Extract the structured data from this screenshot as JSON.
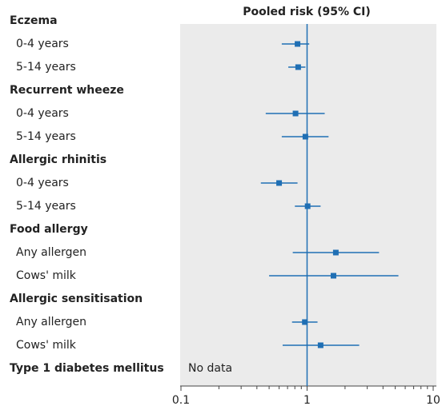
{
  "chart_data": {
    "type": "forest",
    "title": "Pooled risk (95% CI)",
    "color": "#1f6fb4",
    "log": true,
    "xlim": [
      0.1,
      10
    ],
    "xticks": [
      0.1,
      1,
      10
    ],
    "xminorticks": [
      0.2,
      0.3,
      0.4,
      0.5,
      0.6,
      0.7,
      0.8,
      0.9,
      2,
      3,
      4,
      5,
      6,
      7,
      8,
      9
    ],
    "reference": 1,
    "groups": [
      {
        "name": "Eczema",
        "rows": [
          {
            "label": "0-4 years",
            "value": 0.84,
            "ci": [
              0.63,
              1.04
            ]
          },
          {
            "label": "5-14 years",
            "value": 0.85,
            "ci": [
              0.71,
              0.97
            ]
          }
        ]
      },
      {
        "name": "Recurrent wheeze",
        "rows": [
          {
            "label": "0-4 years",
            "value": 0.81,
            "ci": [
              0.47,
              1.38
            ]
          },
          {
            "label": "5-14 years",
            "value": 0.97,
            "ci": [
              0.63,
              1.48
            ]
          }
        ]
      },
      {
        "name": "Allergic rhinitis",
        "rows": [
          {
            "label": "0-4 years",
            "value": 0.6,
            "ci": [
              0.43,
              0.84
            ]
          },
          {
            "label": "5-14 years",
            "value": 1.01,
            "ci": [
              0.8,
              1.28
            ]
          }
        ]
      },
      {
        "name": "Food allergy",
        "rows": [
          {
            "label": "Any allergen",
            "value": 1.69,
            "ci": [
              0.77,
              3.72
            ]
          },
          {
            "label": "Cows' milk",
            "value": 1.62,
            "ci": [
              0.5,
              5.3
            ]
          }
        ]
      },
      {
        "name": "Allergic sensitisation",
        "rows": [
          {
            "label": "Any allergen",
            "value": 0.96,
            "ci": [
              0.76,
              1.21
            ]
          },
          {
            "label": "Cows' milk",
            "value": 1.28,
            "ci": [
              0.64,
              2.59
            ]
          }
        ]
      },
      {
        "name": "Type 1 diabetes mellitus",
        "note": "No data",
        "rows": []
      }
    ]
  }
}
